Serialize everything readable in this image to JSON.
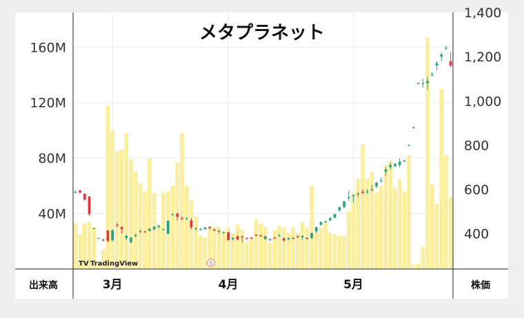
{
  "chart_data": {
    "type": "candlestick+bar",
    "title": "メタプラネット",
    "left_axis": {
      "label": "出来高",
      "ticks": [
        "40M",
        "80M",
        "120M",
        "160M"
      ],
      "tick_values": [
        40,
        80,
        120,
        160
      ],
      "range": [
        0,
        185
      ],
      "unit": "M"
    },
    "right_axis": {
      "label": "株価",
      "ticks": [
        "400",
        "600",
        "800",
        "1,000",
        "1,200",
        "1,400"
      ],
      "tick_values": [
        400,
        600,
        800,
        1000,
        1200,
        1400
      ],
      "range": [
        240,
        1400
      ]
    },
    "x_axis": {
      "month_labels": [
        "3月",
        "4月",
        "5月"
      ],
      "month_label_index": [
        8,
        33,
        60
      ]
    },
    "grid": true,
    "watermark": "TradingView",
    "colors": {
      "volume_bar": "#fbef9e",
      "up_candle": "#26a283",
      "down_candle": "#e1373e",
      "grid": "#e9e9e9",
      "axis": "#222222"
    },
    "volume": [
      33,
      25,
      33,
      34,
      30,
      5,
      14,
      118,
      100,
      85,
      86,
      98,
      79,
      70,
      62,
      56,
      80,
      55,
      32,
      55,
      56,
      60,
      77,
      98,
      60,
      50,
      38,
      24,
      23,
      30,
      30,
      30,
      27,
      30,
      26,
      32,
      28,
      19,
      22,
      36,
      33,
      30,
      19,
      28,
      31,
      30,
      26,
      30,
      26,
      34,
      30,
      60,
      26,
      30,
      34,
      26,
      25,
      24,
      24,
      42,
      55,
      65,
      90,
      65,
      70,
      55,
      60,
      75,
      78,
      58,
      65,
      56,
      82,
      3,
      4,
      16,
      167,
      61,
      47,
      130,
      82,
      52
    ],
    "ohlc": [
      [
        589,
        595,
        582,
        589
      ],
      [
        595,
        598,
        580,
        585
      ],
      [
        580,
        583,
        550,
        553
      ],
      [
        568,
        570,
        480,
        488
      ],
      [
        425,
        427,
        423,
        425
      ],
      [
        380,
        382,
        376,
        380
      ],
      [
        374,
        376,
        366,
        369
      ],
      [
        414,
        416,
        362,
        368
      ],
      [
        370,
        420,
        365,
        415
      ],
      [
        440,
        448,
        430,
        438
      ],
      [
        430,
        432,
        400,
        420
      ],
      [
        380,
        395,
        370,
        390
      ],
      [
        360,
        385,
        357,
        382
      ],
      [
        390,
        398,
        382,
        395
      ],
      [
        410,
        420,
        400,
        412
      ],
      [
        410,
        412,
        405,
        408
      ],
      [
        412,
        425,
        410,
        422
      ],
      [
        420,
        432,
        414,
        432
      ],
      [
        430,
        440,
        425,
        435
      ],
      [
        420,
        422,
        418,
        420
      ],
      [
        400,
        460,
        396,
        458
      ],
      [
        488,
        492,
        482,
        488
      ],
      [
        490,
        494,
        460,
        476
      ],
      [
        470,
        478,
        460,
        468
      ],
      [
        470,
        474,
        462,
        470
      ],
      [
        460,
        470,
        420,
        428
      ],
      [
        425,
        428,
        412,
        425
      ],
      [
        420,
        426,
        415,
        420
      ],
      [
        420,
        430,
        418,
        428
      ],
      [
        430,
        435,
        420,
        424
      ],
      [
        418,
        422,
        410,
        414
      ],
      [
        410,
        418,
        398,
        412
      ],
      [
        406,
        410,
        400,
        407
      ],
      [
        406,
        408,
        368,
        371
      ],
      [
        375,
        385,
        368,
        380
      ],
      [
        388,
        392,
        370,
        374
      ],
      [
        388,
        390,
        360,
        385
      ],
      [
        380,
        384,
        372,
        378
      ],
      [
        382,
        385,
        375,
        378
      ],
      [
        395,
        398,
        388,
        393
      ],
      [
        392,
        395,
        385,
        389
      ],
      [
        376,
        390,
        372,
        388
      ],
      [
        375,
        380,
        365,
        375
      ],
      [
        382,
        386,
        376,
        380
      ],
      [
        390,
        400,
        385,
        392
      ],
      [
        378,
        384,
        364,
        369
      ],
      [
        375,
        382,
        370,
        380
      ],
      [
        380,
        385,
        375,
        378
      ],
      [
        388,
        392,
        380,
        384
      ],
      [
        384,
        392,
        370,
        390
      ],
      [
        380,
        384,
        373,
        376
      ],
      [
        380,
        406,
        376,
        402
      ],
      [
        410,
        430,
        402,
        430
      ],
      [
        440,
        455,
        436,
        452
      ],
      [
        455,
        460,
        450,
        455
      ],
      [
        460,
        475,
        458,
        470
      ],
      [
        472,
        490,
        468,
        488
      ],
      [
        505,
        520,
        500,
        520
      ],
      [
        520,
        550,
        515,
        545
      ],
      [
        560,
        595,
        545,
        565
      ],
      [
        570,
        575,
        540,
        575
      ],
      [
        580,
        590,
        565,
        580
      ],
      [
        590,
        600,
        580,
        584
      ],
      [
        590,
        600,
        580,
        590
      ],
      [
        600,
        620,
        590,
        600
      ],
      [
        613,
        635,
        605,
        630
      ],
      [
        640,
        655,
        630,
        640
      ],
      [
        680,
        700,
        660,
        690
      ],
      [
        700,
        720,
        690,
        710
      ],
      [
        705,
        720,
        700,
        715
      ],
      [
        710,
        740,
        700,
        725
      ],
      [
        728,
        734,
        724,
        730
      ],
      [
        800,
        804,
        796,
        800
      ],
      [
        880,
        884,
        876,
        880
      ],
      [
        1080,
        1084,
        1076,
        1080
      ],
      [
        1080,
        1100,
        1060,
        1080
      ],
      [
        1080,
        1110,
        1050,
        1090
      ],
      [
        1120,
        1130,
        1110,
        1120
      ],
      [
        1160,
        1180,
        1140,
        1170
      ],
      [
        1200,
        1220,
        1180,
        1210
      ],
      [
        1240,
        1250,
        1230,
        1240
      ],
      [
        1180,
        1220,
        1150,
        1160
      ]
    ]
  }
}
